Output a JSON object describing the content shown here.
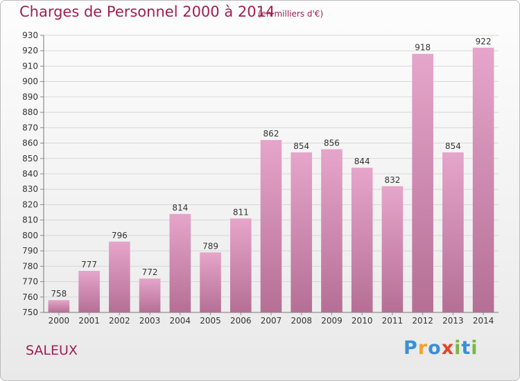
{
  "header": {
    "title": "Charges de Personnel 2000 à 2014",
    "subtitle": "(en milliers d'€)"
  },
  "footer": {
    "commune": "SALEUX",
    "logo_text": "Proxiti",
    "logo_colors": [
      "#3a8fd8",
      "#f2a12e",
      "#3a8fd8",
      "#e2452b",
      "#7ab648",
      "#3a8fd8",
      "#7ab648"
    ]
  },
  "colors": {
    "bar_top": "#e6a5ca",
    "bar_bottom": "#b56f95",
    "accent": "#a01e4f",
    "grid": "#d7d7d7"
  },
  "chart_data": {
    "type": "bar",
    "categories": [
      "2000",
      "2001",
      "2002",
      "2003",
      "2004",
      "2005",
      "2006",
      "2007",
      "2008",
      "2009",
      "2010",
      "2011",
      "2012",
      "2013",
      "2014"
    ],
    "values": [
      758,
      777,
      796,
      772,
      814,
      789,
      811,
      862,
      854,
      856,
      844,
      832,
      918,
      854,
      922
    ],
    "ylim": [
      750,
      930
    ],
    "yticks": [
      750,
      760,
      770,
      780,
      790,
      800,
      810,
      820,
      830,
      840,
      850,
      860,
      870,
      880,
      890,
      900,
      910,
      920,
      930
    ],
    "grid": true,
    "title": "Charges de Personnel 2000 à 2014",
    "xlabel": "",
    "ylabel": ""
  }
}
